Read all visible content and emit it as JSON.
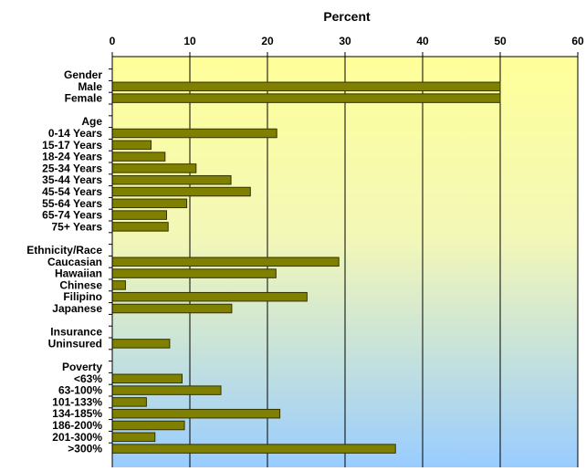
{
  "chart_data": {
    "type": "bar",
    "orientation": "horizontal",
    "title": "Percent",
    "xlim": [
      0,
      60
    ],
    "x_ticks": [
      "0",
      "10",
      "20",
      "30",
      "40",
      "50",
      "60"
    ],
    "grid": true,
    "colors": {
      "bar": "#808000",
      "bar_border": "#333300",
      "background_top": "#ffff99",
      "background_bottom": "#99ccff"
    },
    "categories": [
      {
        "label": "Gender",
        "group": true
      },
      {
        "label": "Male",
        "value": 50
      },
      {
        "label": "Female",
        "value": 50
      },
      {
        "label": "",
        "spacer": true
      },
      {
        "label": "Age",
        "group": true
      },
      {
        "label": "0-14 Years",
        "value": 21.2
      },
      {
        "label": "15-17 Years",
        "value": 5
      },
      {
        "label": "18-24 Years",
        "value": 6.8
      },
      {
        "label": "25-34 Years",
        "value": 10.8
      },
      {
        "label": "35-44 Years",
        "value": 15.3
      },
      {
        "label": "45-54 Years",
        "value": 17.8
      },
      {
        "label": "55-64 Years",
        "value": 9.6
      },
      {
        "label": "65-74 Years",
        "value": 7
      },
      {
        "label": "75+ Years",
        "value": 7.2
      },
      {
        "label": "",
        "spacer": true
      },
      {
        "label": "Ethnicity/Race",
        "group": true
      },
      {
        "label": "Caucasian",
        "value": 29.2
      },
      {
        "label": "Hawaiian",
        "value": 21.1
      },
      {
        "label": "Chinese",
        "value": 1.7
      },
      {
        "label": "Filipino",
        "value": 25.1
      },
      {
        "label": "Japanese",
        "value": 15.4
      },
      {
        "label": "",
        "spacer": true
      },
      {
        "label": "Insurance",
        "group": true
      },
      {
        "label": "Uninsured",
        "value": 7.4
      },
      {
        "label": "",
        "spacer": true
      },
      {
        "label": "Poverty",
        "group": true
      },
      {
        "label": "<63%",
        "value": 9
      },
      {
        "label": "63-100%",
        "value": 14
      },
      {
        "label": "101-133%",
        "value": 4.4
      },
      {
        "label": "134-185%",
        "value": 21.6
      },
      {
        "label": "186-200%",
        "value": 9.3
      },
      {
        "label": "201-300%",
        "value": 5.5
      },
      {
        "label": ">300%",
        "value": 36.5
      }
    ]
  }
}
